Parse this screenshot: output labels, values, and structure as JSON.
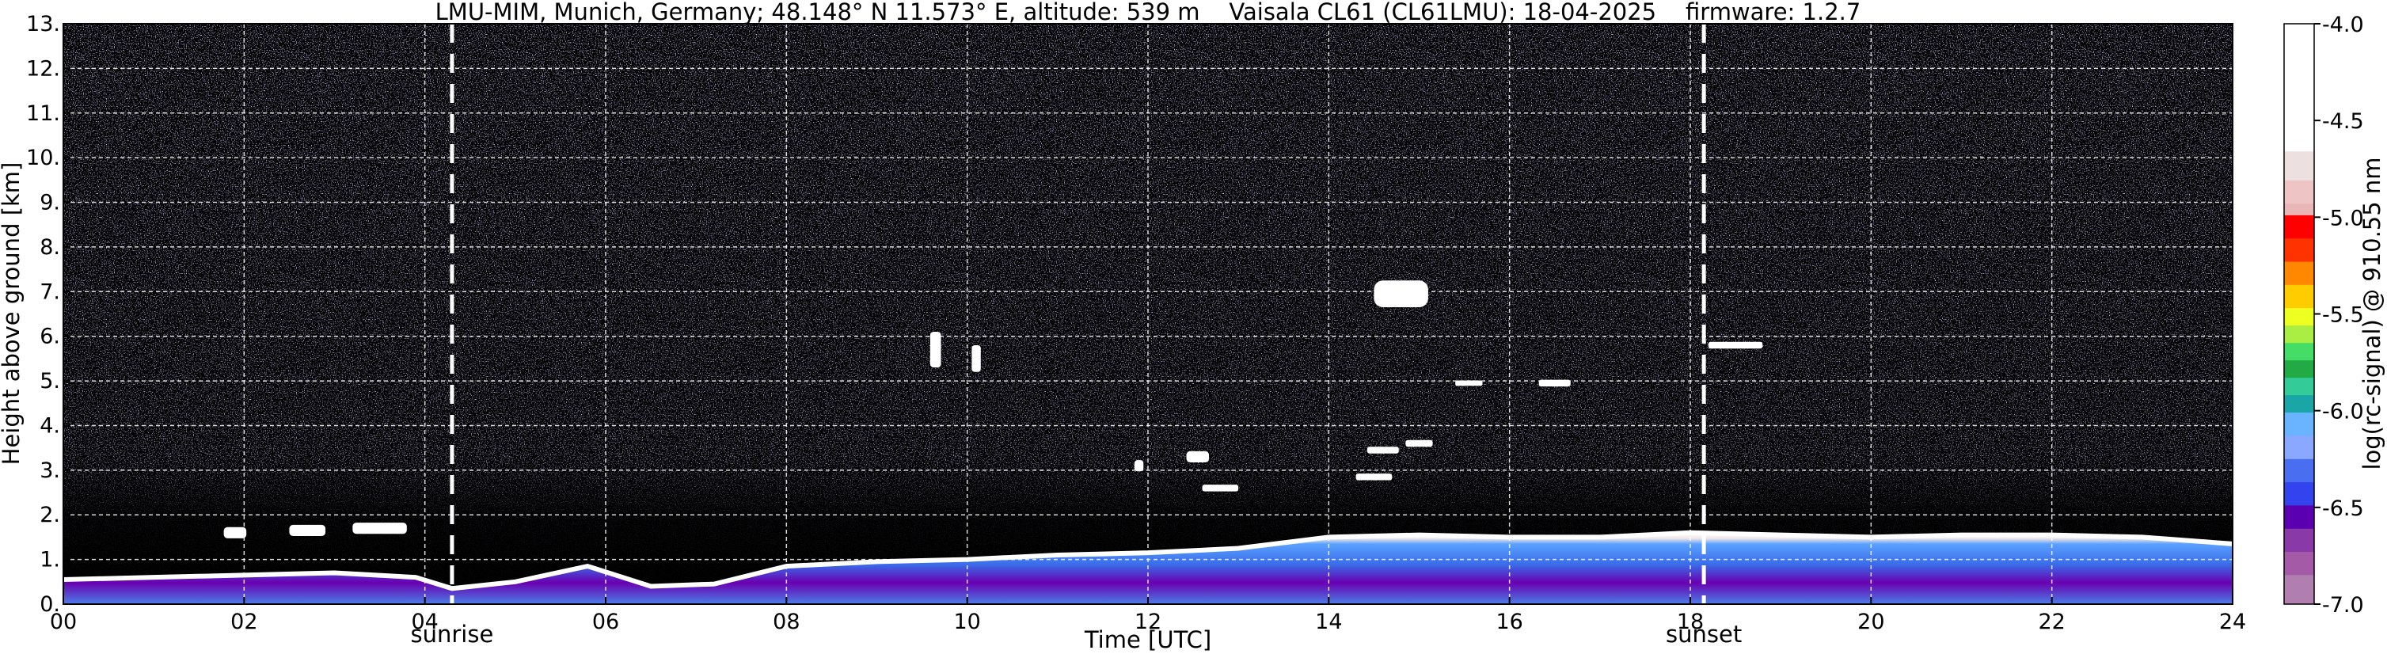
{
  "chart_data": {
    "type": "heatmap",
    "title": "LMU-MIM, Munich, Germany; 48.148° N 11.573° E, altitude: 539 m    Vaisala CL61 (CL61LMU): 18-04-2025    firmware: 1.2.7",
    "xlabel": "Time [UTC]",
    "ylabel": "Height above ground [km]",
    "xlim": [
      0,
      24
    ],
    "ylim": [
      0,
      13
    ],
    "x_ticks": [
      "00",
      "02",
      "04",
      "06",
      "08",
      "10",
      "12",
      "14",
      "16",
      "18",
      "20",
      "22",
      "24"
    ],
    "y_ticks": [
      "0.",
      "1.",
      "2.",
      "3.",
      "4.",
      "5.",
      "6.",
      "7.",
      "8.",
      "9.",
      "10.",
      "11.",
      "12.",
      "13."
    ],
    "grid": true,
    "colorbar": {
      "label": "log(rc-signal) @ 910.55 nm",
      "range": [
        -7.0,
        -4.0
      ],
      "ticks": [
        "-4.0",
        "-4.5",
        "-5.0",
        "-5.5",
        "-6.0",
        "-6.5",
        "-7.0"
      ]
    },
    "events": [
      {
        "label": "sunrise",
        "time": 4.3
      },
      {
        "label": "sunset",
        "time": 18.15
      }
    ],
    "boundary_layer_top_km": [
      [
        0,
        0.55
      ],
      [
        1,
        0.6
      ],
      [
        2,
        0.65
      ],
      [
        3,
        0.7
      ],
      [
        3.9,
        0.6
      ],
      [
        4.3,
        0.35
      ],
      [
        5,
        0.5
      ],
      [
        5.8,
        0.85
      ],
      [
        6.5,
        0.4
      ],
      [
        7.2,
        0.45
      ],
      [
        8,
        0.85
      ],
      [
        9,
        0.95
      ],
      [
        10,
        1.0
      ],
      [
        11,
        1.1
      ],
      [
        12,
        1.15
      ],
      [
        13,
        1.25
      ],
      [
        14,
        1.5
      ],
      [
        15,
        1.55
      ],
      [
        16,
        1.5
      ],
      [
        17,
        1.5
      ],
      [
        18,
        1.6
      ],
      [
        19,
        1.55
      ],
      [
        20,
        1.5
      ],
      [
        21,
        1.55
      ],
      [
        22,
        1.55
      ],
      [
        23,
        1.5
      ],
      [
        24,
        1.35
      ]
    ],
    "cloud_features": [
      {
        "t": 1.9,
        "h": 1.6,
        "w": 0.25,
        "d": 0.25
      },
      {
        "t": 2.7,
        "h": 1.65,
        "w": 0.4,
        "d": 0.25
      },
      {
        "t": 3.5,
        "h": 1.7,
        "w": 0.6,
        "d": 0.25
      },
      {
        "t": 9.65,
        "h": 5.7,
        "w": 0.12,
        "d": 0.8
      },
      {
        "t": 10.1,
        "h": 5.5,
        "w": 0.1,
        "d": 0.6
      },
      {
        "t": 11.9,
        "h": 3.1,
        "w": 0.1,
        "d": 0.25
      },
      {
        "t": 12.55,
        "h": 3.3,
        "w": 0.25,
        "d": 0.25
      },
      {
        "t": 12.8,
        "h": 2.6,
        "w": 0.4,
        "d": 0.15
      },
      {
        "t": 14.8,
        "h": 6.95,
        "w": 0.6,
        "d": 0.6
      },
      {
        "t": 14.6,
        "h": 3.45,
        "w": 0.35,
        "d": 0.15
      },
      {
        "t": 15.0,
        "h": 3.6,
        "w": 0.3,
        "d": 0.15
      },
      {
        "t": 14.5,
        "h": 2.85,
        "w": 0.4,
        "d": 0.15
      },
      {
        "t": 15.55,
        "h": 4.95,
        "w": 0.3,
        "d": 0.12
      },
      {
        "t": 16.5,
        "h": 4.95,
        "w": 0.35,
        "d": 0.15
      },
      {
        "t": 18.5,
        "h": 5.8,
        "w": 0.6,
        "d": 0.15
      }
    ]
  }
}
